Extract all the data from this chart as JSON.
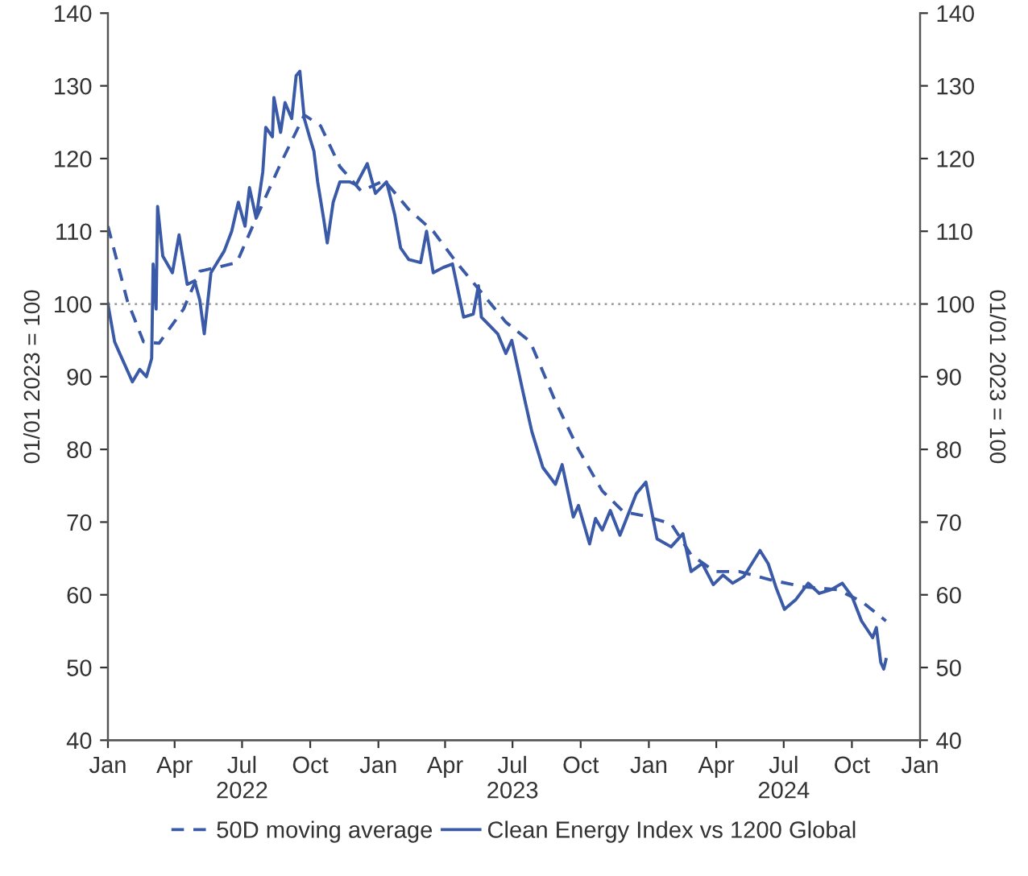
{
  "chart_data": {
    "type": "line",
    "ylabel": "01/01 2023 = 100",
    "y2label": "01/01 2023 = 100",
    "xlim": [
      "2022-01-01",
      "2025-01-01"
    ],
    "xticks": [
      {
        "value": "2022-01-01",
        "label": "Jan"
      },
      {
        "value": "2022-04-01",
        "label": "Apr"
      },
      {
        "value": "2022-07-01",
        "label": "Jul\n2022"
      },
      {
        "value": "2022-10-01",
        "label": "Oct"
      },
      {
        "value": "2023-01-01",
        "label": "Jan"
      },
      {
        "value": "2023-04-01",
        "label": "Apr"
      },
      {
        "value": "2023-07-01",
        "label": "Jul\n2023"
      },
      {
        "value": "2023-10-01",
        "label": "Oct"
      },
      {
        "value": "2024-01-01",
        "label": "Jan"
      },
      {
        "value": "2024-04-01",
        "label": "Apr"
      },
      {
        "value": "2024-07-01",
        "label": "Jul\n2024"
      },
      {
        "value": "2024-10-01",
        "label": "Oct"
      },
      {
        "value": "2025-01-01",
        "label": "Jan"
      }
    ],
    "ylim": [
      40,
      140
    ],
    "yticks": [
      40,
      50,
      60,
      70,
      80,
      90,
      100,
      110,
      120,
      130,
      140
    ],
    "y2lim": [
      40,
      140
    ],
    "y2ticks": [
      40,
      50,
      60,
      70,
      80,
      90,
      100,
      110,
      120,
      130,
      140
    ],
    "ref_lines": [
      {
        "axis": "y",
        "value": 100,
        "color": "#a0a0a0",
        "line_style": "dotted"
      }
    ],
    "legend": "bottom",
    "grid": false,
    "marker": "none",
    "series": [
      {
        "name": "50D moving average",
        "color": "#3a5aa8",
        "line_style": "dashed",
        "x": [
          "2022-01-01",
          "2022-01-27",
          "2022-02-18",
          "2022-03-11",
          "2022-04-13",
          "2022-05-05",
          "2022-05-27",
          "2022-06-24",
          "2022-07-20",
          "2022-08-22",
          "2022-09-23",
          "2022-10-15",
          "2022-11-10",
          "2022-12-09",
          "2023-01-09",
          "2023-02-11",
          "2023-03-16",
          "2023-04-18",
          "2023-05-20",
          "2023-06-22",
          "2023-07-25",
          "2023-08-27",
          "2023-09-28",
          "2023-10-30",
          "2023-11-28",
          "2023-12-24",
          "2024-01-31",
          "2024-02-27",
          "2024-03-30",
          "2024-05-02",
          "2024-06-15",
          "2024-07-28",
          "2024-09-11",
          "2024-10-14",
          "2024-11-16"
        ],
        "values": [
          110.7,
          100.5,
          94.8,
          94.6,
          99.3,
          104.5,
          105,
          105.7,
          111.8,
          119.3,
          126,
          124.5,
          118.9,
          115.5,
          117,
          113,
          110,
          105.5,
          101.6,
          97.5,
          94.8,
          86.8,
          80,
          74.3,
          71.4,
          70.9,
          69.8,
          65.5,
          63.2,
          63.2,
          62,
          61.1,
          60.7,
          59.1,
          56.4
        ]
      },
      {
        "name": "Clean Energy Index vs 1200 Global",
        "color": "#3a5aa8",
        "line_style": "solid",
        "x": [
          "2022-01-01",
          "2022-01-10",
          "2022-01-16",
          "2022-01-27",
          "2022-02-03",
          "2022-02-13",
          "2022-02-22",
          "2022-03-01",
          "2022-03-03",
          "2022-03-07",
          "2022-03-09",
          "2022-03-16",
          "2022-03-29",
          "2022-04-07",
          "2022-04-18",
          "2022-04-28",
          "2022-05-05",
          "2022-05-11",
          "2022-05-20",
          "2022-06-07",
          "2022-06-17",
          "2022-06-26",
          "2022-07-05",
          "2022-07-11",
          "2022-07-20",
          "2022-07-29",
          "2022-08-02",
          "2022-08-11",
          "2022-08-13",
          "2022-08-22",
          "2022-08-28",
          "2022-09-06",
          "2022-09-12",
          "2022-09-17",
          "2022-09-23",
          "2022-09-30",
          "2022-10-06",
          "2022-10-11",
          "2022-10-19",
          "2022-10-24",
          "2022-11-01",
          "2022-11-10",
          "2022-11-23",
          "2022-12-02",
          "2022-12-17",
          "2022-12-28",
          "2023-01-12",
          "2023-01-23",
          "2023-01-31",
          "2023-02-11",
          "2023-02-27",
          "2023-03-07",
          "2023-03-16",
          "2023-03-29",
          "2023-04-11",
          "2023-04-26",
          "2023-05-09",
          "2023-05-16",
          "2023-05-20",
          "2023-06-11",
          "2023-06-22",
          "2023-06-30",
          "2023-07-16",
          "2023-07-27",
          "2023-08-11",
          "2023-08-28",
          "2023-09-06",
          "2023-09-21",
          "2023-09-28",
          "2023-10-13",
          "2023-10-21",
          "2023-10-30",
          "2023-11-10",
          "2023-11-23",
          "2023-12-15",
          "2023-12-28",
          "2024-01-12",
          "2024-01-31",
          "2024-02-16",
          "2024-02-27",
          "2024-03-13",
          "2024-03-28",
          "2024-04-10",
          "2024-04-23",
          "2024-05-08",
          "2024-05-30",
          "2024-06-10",
          "2024-06-21",
          "2024-07-02",
          "2024-07-17",
          "2024-08-03",
          "2024-08-18",
          "2024-09-03",
          "2024-09-18",
          "2024-10-01",
          "2024-10-14",
          "2024-10-29",
          "2024-11-03",
          "2024-11-09",
          "2024-11-13",
          "2024-11-16"
        ],
        "values": [
          100,
          94.8,
          93.4,
          90.9,
          89.3,
          91,
          90,
          92.5,
          105.5,
          99.3,
          113.4,
          106.6,
          104.3,
          109.5,
          102.7,
          103.2,
          100.5,
          95.9,
          104.3,
          107.3,
          110,
          114,
          110.7,
          116,
          111.8,
          118.2,
          124.3,
          123,
          128.4,
          123.6,
          127.7,
          125.5,
          131.4,
          132,
          125.5,
          123,
          121,
          116.8,
          111.8,
          108.4,
          114,
          116.8,
          116.8,
          116.4,
          119.3,
          115.2,
          116.8,
          112.3,
          107.7,
          106.1,
          105.7,
          110,
          104.3,
          105,
          105.5,
          98.2,
          98.6,
          102.5,
          98.2,
          95.9,
          93.2,
          95,
          87.5,
          82.5,
          77.5,
          75.2,
          77.9,
          70.7,
          72.3,
          67,
          70.5,
          68.9,
          71.6,
          68.2,
          73.9,
          75.5,
          67.7,
          66.6,
          68.4,
          63.2,
          64.3,
          61.4,
          62.7,
          61.6,
          62.5,
          66.1,
          64.3,
          60.9,
          58,
          59.3,
          61.6,
          60.2,
          60.7,
          61.6,
          59.8,
          56.4,
          54.1,
          55.5,
          50.7,
          49.8,
          51.1
        ]
      }
    ]
  }
}
